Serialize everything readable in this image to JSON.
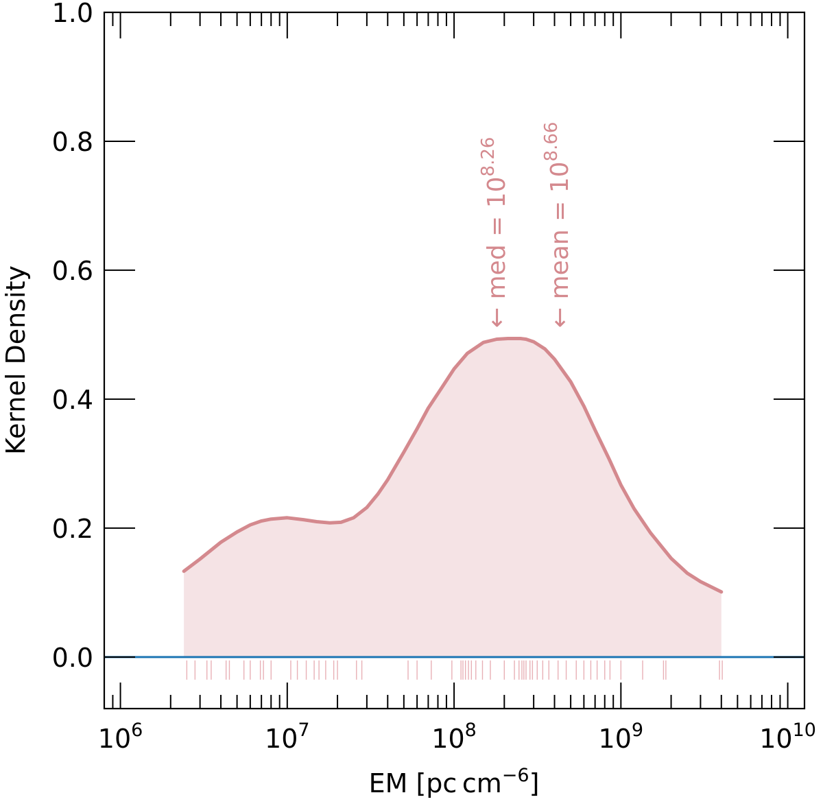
{
  "chart_data": {
    "type": "line",
    "xlabel": "EM [pc cm",
    "xlabel_sup": "−6",
    "xlabel_close": "]",
    "ylabel": "Kernel Density",
    "x_scale": "log",
    "xlim": [
      800000,
      12600000000
    ],
    "ylim": [
      -0.08,
      1.0
    ],
    "x_ticks": [
      {
        "value": 1000000,
        "base": "10",
        "exp": "6"
      },
      {
        "value": 10000000,
        "base": "10",
        "exp": "7"
      },
      {
        "value": 100000000,
        "base": "10",
        "exp": "8"
      },
      {
        "value": 1000000000,
        "base": "10",
        "exp": "9"
      },
      {
        "value": 10000000000,
        "base": "10",
        "exp": "10"
      }
    ],
    "y_ticks": [
      {
        "value": 0.0,
        "label": "0.0"
      },
      {
        "value": 0.2,
        "label": "0.2"
      },
      {
        "value": 0.4,
        "label": "0.4"
      },
      {
        "value": 0.6,
        "label": "0.6"
      },
      {
        "value": 0.8,
        "label": "0.8"
      },
      {
        "value": 1.0,
        "label": "1.0"
      }
    ],
    "colors": {
      "curve": "#d4898e",
      "fill": "#f5e3e5",
      "rug": "#e8b0b6",
      "baseline": "#1f77b4",
      "axes": "#000000"
    },
    "series": [
      {
        "x": [
          2400000,
          3000000,
          4000000,
          5000000,
          6000000,
          7000000,
          8000000,
          10000000,
          12500000,
          15000000,
          18000000,
          21000000,
          25000000,
          30000000,
          35000000,
          40000000,
          50000000,
          60000000,
          70000000,
          85000000,
          100000000,
          120000000,
          150000000,
          180000000,
          210000000,
          250000000,
          270000000,
          300000000,
          350000000,
          400000000,
          500000000,
          600000000,
          700000000,
          850000000,
          1000000000,
          1200000000,
          1500000000,
          2000000000,
          2500000000,
          3000000000,
          4000000000
        ],
        "y": [
          0.133,
          0.152,
          0.178,
          0.194,
          0.205,
          0.211,
          0.214,
          0.216,
          0.213,
          0.21,
          0.208,
          0.209,
          0.216,
          0.232,
          0.253,
          0.275,
          0.318,
          0.354,
          0.386,
          0.419,
          0.447,
          0.471,
          0.488,
          0.493,
          0.494,
          0.494,
          0.493,
          0.489,
          0.478,
          0.462,
          0.427,
          0.389,
          0.352,
          0.307,
          0.267,
          0.23,
          0.193,
          0.153,
          0.13,
          0.117,
          0.101
        ]
      }
    ],
    "annotations": [
      {
        "text": "← med = 10",
        "exp": "8.26",
        "x": 180000000
      },
      {
        "text": "← mean = 10",
        "exp": "8.66",
        "x": 430000000
      }
    ],
    "rug": [
      2500000,
      2800000,
      3300000,
      3500000,
      4300000,
      4500000,
      5500000,
      6000000,
      6900000,
      7200000,
      8000000,
      10500000,
      11500000,
      13000000,
      14500000,
      15500000,
      17000000,
      19000000,
      20000000,
      26000000,
      28000000,
      53000000,
      60000000,
      73000000,
      97000000,
      110000000,
      113000000,
      117000000,
      122000000,
      127000000,
      135000000,
      148000000,
      165000000,
      200000000,
      230000000,
      245000000,
      255000000,
      262000000,
      270000000,
      285000000,
      295000000,
      315000000,
      340000000,
      370000000,
      420000000,
      470000000,
      540000000,
      600000000,
      660000000,
      720000000,
      800000000,
      860000000,
      1000000000,
      1350000000,
      1800000000,
      1860000000,
      3900000000,
      4050000000
    ]
  }
}
